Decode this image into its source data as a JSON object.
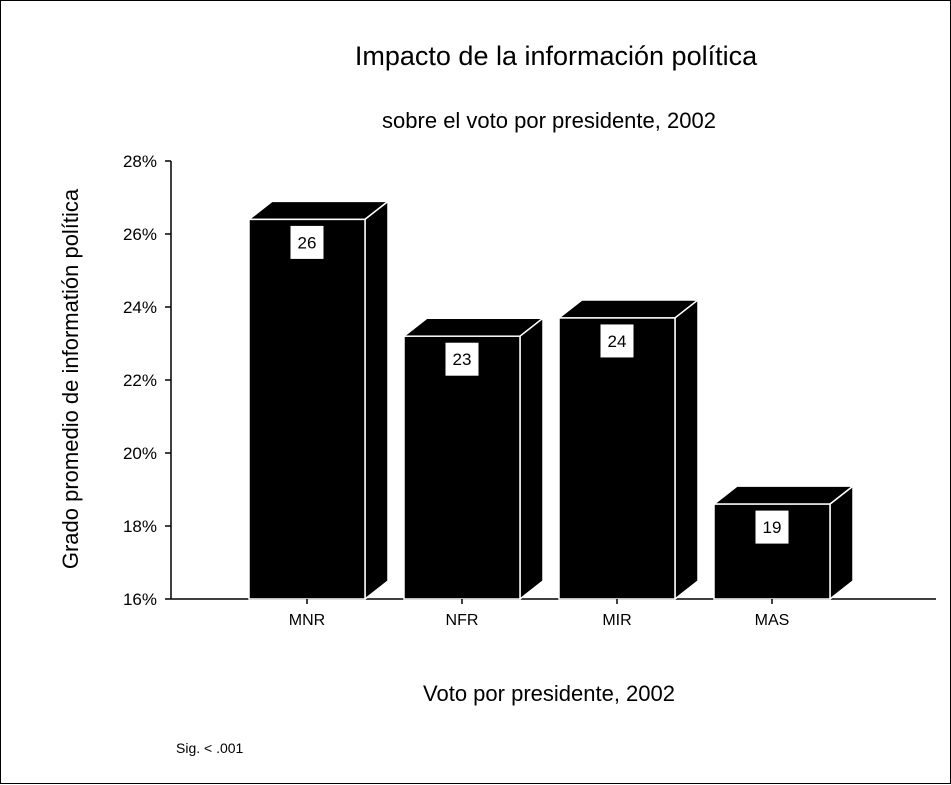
{
  "chart_data": {
    "type": "bar",
    "title": "Impacto de la información política",
    "subtitle": "sobre el voto por presidente, 2002",
    "xlabel": "Voto por presidente, 2002",
    "ylabel": "Grado promedio de informatión política",
    "categories": [
      "MNR",
      "NFR",
      "MIR",
      "MAS"
    ],
    "values": [
      26.4,
      23.2,
      23.7,
      18.6
    ],
    "data_labels": [
      "26",
      "23",
      "24",
      "19"
    ],
    "ylim": [
      16,
      28
    ],
    "yticks": [
      16,
      18,
      20,
      22,
      24,
      26,
      28
    ],
    "ytick_labels": [
      "16%",
      "18%",
      "20%",
      "22%",
      "24%",
      "26%",
      "28%"
    ],
    "grid": false,
    "note": "Sig. < .001",
    "bar_color": "#000000"
  }
}
